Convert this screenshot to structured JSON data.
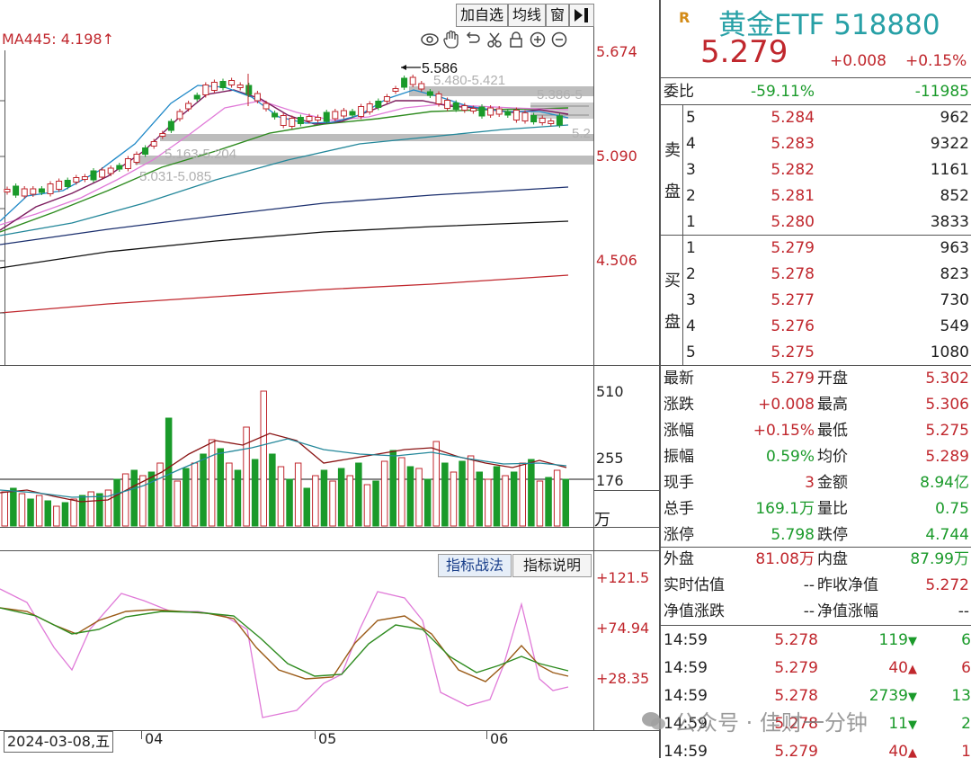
{
  "toolbar": {
    "add_watch_label": "加自选",
    "avg_line_label": "均线",
    "window_label": "窗"
  },
  "main_chart": {
    "ma_label": "MA445: 4.198↑",
    "price_labels": [
      "5.674",
      "5.090",
      "4.506"
    ],
    "high_annotation": "5.586",
    "zone_labels": [
      "5.480-5.421",
      "5.386-5",
      "5.163-5.204",
      "5.031-5.085",
      "5.2"
    ]
  },
  "volume_chart": {
    "labels": [
      "510",
      "255",
      "176"
    ],
    "unit": "万"
  },
  "indicator_chart": {
    "tab_strategy": "指标战法",
    "tab_explain": "指标说明",
    "labels": [
      "+121.5",
      "+74.94",
      "+28.35"
    ]
  },
  "x_axis": {
    "date": "2024-03-08,五",
    "months": [
      "04",
      "05",
      "06"
    ]
  },
  "panel": {
    "badge": "R",
    "name": "黄金ETF 518880",
    "price": "5.279",
    "change": "+0.008",
    "change_pct": "+0.15%",
    "weibi": {
      "label": "委比",
      "pct": "-59.11%",
      "value": "-11985"
    },
    "sell_label_top": "卖",
    "sell_label_bottom": "盘",
    "buy_label_top": "买",
    "buy_label_bottom": "盘",
    "asks": [
      {
        "level": "5",
        "price": "5.284",
        "vol": "962"
      },
      {
        "level": "4",
        "price": "5.283",
        "vol": "9322"
      },
      {
        "level": "3",
        "price": "5.282",
        "vol": "1161"
      },
      {
        "level": "2",
        "price": "5.281",
        "vol": "852"
      },
      {
        "level": "1",
        "price": "5.280",
        "vol": "3833"
      }
    ],
    "bids": [
      {
        "level": "1",
        "price": "5.279",
        "vol": "963"
      },
      {
        "level": "2",
        "price": "5.278",
        "vol": "823"
      },
      {
        "level": "3",
        "price": "5.277",
        "vol": "730"
      },
      {
        "level": "4",
        "price": "5.276",
        "vol": "549"
      },
      {
        "level": "5",
        "price": "5.275",
        "vol": "1080"
      }
    ],
    "stats": [
      {
        "l1": "最新",
        "v1": "5.279",
        "c1": "red",
        "l2": "开盘",
        "v2": "5.302",
        "c2": "red"
      },
      {
        "l1": "涨跌",
        "v1": "+0.008",
        "c1": "red",
        "l2": "最高",
        "v2": "5.306",
        "c2": "red"
      },
      {
        "l1": "涨幅",
        "v1": "+0.15%",
        "c1": "red",
        "l2": "最低",
        "v2": "5.275",
        "c2": "red"
      },
      {
        "l1": "振幅",
        "v1": "0.59%",
        "c1": "green",
        "l2": "均价",
        "v2": "5.289",
        "c2": "red"
      },
      {
        "l1": "现手",
        "v1": "3",
        "c1": "red",
        "l2": "金额",
        "v2": "8.94亿",
        "c2": "green"
      },
      {
        "l1": "总手",
        "v1": "169.1万",
        "c1": "green",
        "l2": "量比",
        "v2": "0.75",
        "c2": "green"
      },
      {
        "l1": "涨停",
        "v1": "5.798",
        "c1": "green",
        "l2": "跌停",
        "v2": "4.744",
        "c2": "green"
      }
    ],
    "outer": {
      "l1": "外盘",
      "v1": "81.08万",
      "l2": "内盘",
      "v2": "87.99万"
    },
    "nav1": {
      "l1": "实时估值",
      "v1": "--",
      "l2": "昨收净值",
      "v2": "5.272"
    },
    "nav2": {
      "l1": "净值涨跌",
      "v1": "--",
      "l2": "净值涨幅",
      "v2": "--"
    },
    "ticks": [
      {
        "time": "14:59",
        "price": "5.278",
        "pc": "red",
        "vol": "119",
        "dir": "down",
        "n": "6"
      },
      {
        "time": "14:59",
        "price": "5.279",
        "pc": "red",
        "vol": "40",
        "dir": "up",
        "n": "6"
      },
      {
        "time": "14:59",
        "price": "5.278",
        "pc": "red",
        "vol": "2739",
        "dir": "down",
        "n": "13"
      },
      {
        "time": "14:59",
        "price": "5.278",
        "pc": "red",
        "vol": "11",
        "dir": "down",
        "n": "2"
      },
      {
        "time": "14:59",
        "price": "5.279",
        "pc": "red",
        "vol": "40",
        "dir": "up",
        "n": "1"
      }
    ]
  },
  "watermark": "公众号 · 佳财一分钟",
  "colors": {
    "up": "#c0272d",
    "down": "#1a9a2a",
    "title": "#27a0a6"
  }
}
